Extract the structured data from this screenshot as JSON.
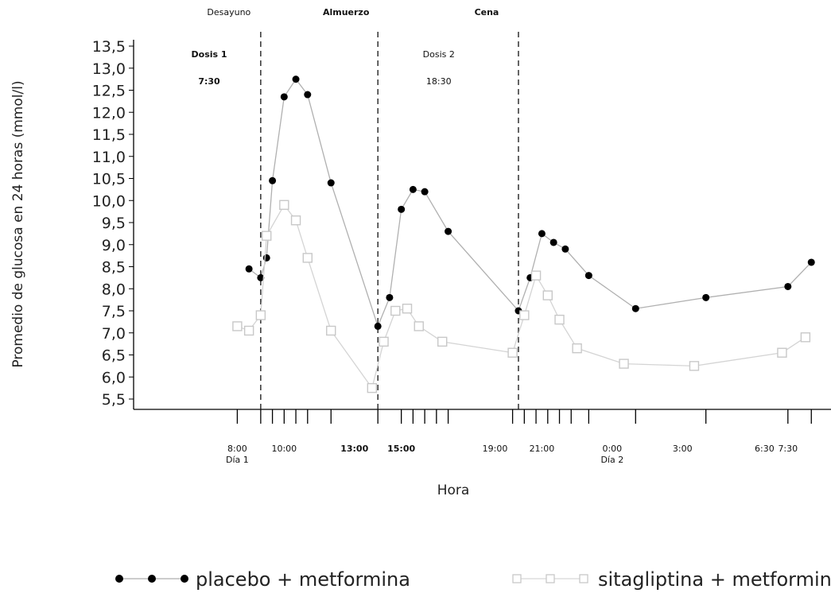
{
  "chart_data": {
    "type": "line",
    "ylabel": "Promedio de glucosa en 24 horas (mmol/l)",
    "xlabel": "Hora",
    "ylim": [
      5.5,
      13.5
    ],
    "y_ticks": [
      "5,5",
      "6,0",
      "6,5",
      "7,0",
      "7,5",
      "8,0",
      "8,5",
      "9,0",
      "9,5",
      "10,0",
      "10,5",
      "11,0",
      "11,5",
      "12,0",
      "12,5",
      "13,0",
      "13,5"
    ],
    "x_ticks": [
      {
        "label": "8:00",
        "sub": "Día 1",
        "t": 8
      },
      {
        "label": "10:00",
        "t": 10
      },
      {
        "label": "13:00",
        "t": 13,
        "bold": true
      },
      {
        "label": "15:00",
        "t": 15,
        "bold": true
      },
      {
        "label": "19:00",
        "t": 19
      },
      {
        "label": "21:00",
        "t": 21
      },
      {
        "label": "0:00",
        "sub": "Día 2",
        "t": 24
      },
      {
        "label": "3:00",
        "t": 27
      },
      {
        "label": "6:30",
        "t": 30.5
      },
      {
        "label": "7:30",
        "t": 31.5
      }
    ],
    "tick_marks": [
      8,
      9,
      9.5,
      10,
      10.5,
      11,
      12,
      14,
      15,
      15.5,
      16,
      16.5,
      17,
      19.75,
      20.25,
      20.75,
      21.25,
      21.75,
      22.25,
      23,
      25,
      28,
      31.5,
      32.5
    ],
    "meals": [
      {
        "label": "Desayuno",
        "t": 9,
        "bold": false
      },
      {
        "label": "Almuerzo",
        "t": 14,
        "bold": true
      },
      {
        "label": "Cena",
        "t": 20,
        "bold": true
      }
    ],
    "meal_lines": [
      9,
      14,
      20
    ],
    "doses": [
      {
        "label": "Dosis 1",
        "time": "7:30",
        "t": 6.8,
        "bold": true
      },
      {
        "label": "Dosis 2",
        "time": "18:30",
        "t": 16.6,
        "bold": false
      }
    ],
    "series": [
      {
        "name": "placebo + metformina",
        "x": [
          8.5,
          9,
          9.25,
          9.5,
          10,
          10.5,
          11,
          12,
          14,
          14.5,
          15,
          15.5,
          16,
          17,
          20,
          20.5,
          21,
          21.5,
          22,
          23,
          25,
          28,
          31.5,
          32.5
        ],
        "y": [
          8.45,
          8.25,
          8.7,
          10.45,
          12.35,
          12.75,
          12.4,
          10.4,
          7.15,
          7.8,
          9.8,
          10.25,
          10.2,
          9.3,
          7.5,
          8.25,
          9.25,
          9.05,
          8.9,
          8.3,
          7.55,
          7.8,
          8.05,
          8.6
        ]
      },
      {
        "name": "sitagliptina + metformina",
        "x": [
          8,
          8.5,
          9,
          9.25,
          10,
          10.5,
          11,
          12,
          13.75,
          14.25,
          14.75,
          15.25,
          15.75,
          16.75,
          19.75,
          20.25,
          20.75,
          21.25,
          21.75,
          22.5,
          24.5,
          27.5,
          31.25,
          32.25
        ],
        "y": [
          7.15,
          7.05,
          7.4,
          9.2,
          9.9,
          9.55,
          8.7,
          7.05,
          5.75,
          6.8,
          7.5,
          7.55,
          7.15,
          6.8,
          6.55,
          7.4,
          8.3,
          7.85,
          7.3,
          6.65,
          6.3,
          6.25,
          6.55,
          6.9
        ]
      }
    ],
    "legend_position": "bottom",
    "colors": {
      "placebo": "#000000",
      "sitagliptina": "#c8c8c8",
      "axis": "#000000",
      "lines": "#bdbdbd"
    }
  }
}
